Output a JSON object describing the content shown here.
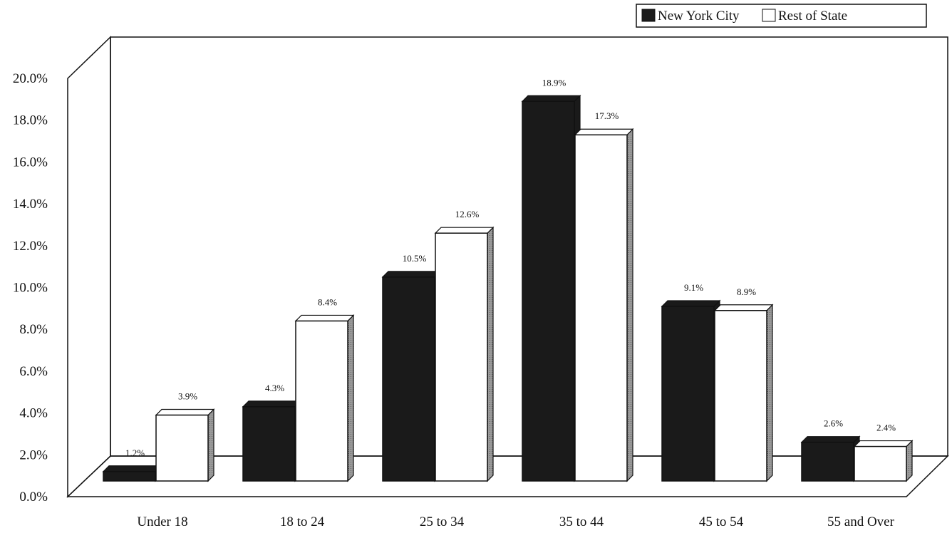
{
  "chart_data": {
    "type": "bar",
    "categories": [
      "Under 18",
      "18 to 24",
      "25 to 34",
      "35 to 44",
      "45 to 54",
      "55 and Over"
    ],
    "series": [
      {
        "name": "New York City",
        "values": [
          1.2,
          4.3,
          10.5,
          18.9,
          9.1,
          2.6
        ],
        "labels": [
          "1.2%",
          "4.3%",
          "10.5%",
          "18.9%",
          "9.1%",
          "2.6%"
        ],
        "color": "#1a1a1a"
      },
      {
        "name": "Rest of State",
        "values": [
          3.9,
          8.4,
          12.6,
          17.3,
          8.9,
          2.4
        ],
        "labels": [
          "3.9%",
          "8.4%",
          "12.6%",
          "17.3%",
          "8.9%",
          "2.4%"
        ],
        "color": "#ffffff"
      }
    ],
    "yticks": [
      "0.0%",
      "2.0%",
      "4.0%",
      "6.0%",
      "8.0%",
      "10.0%",
      "12.0%",
      "14.0%",
      "16.0%",
      "18.0%",
      "20.0%"
    ],
    "ylim": [
      0,
      20
    ],
    "legend_position": "top-right",
    "grid": false,
    "style": "3d"
  }
}
